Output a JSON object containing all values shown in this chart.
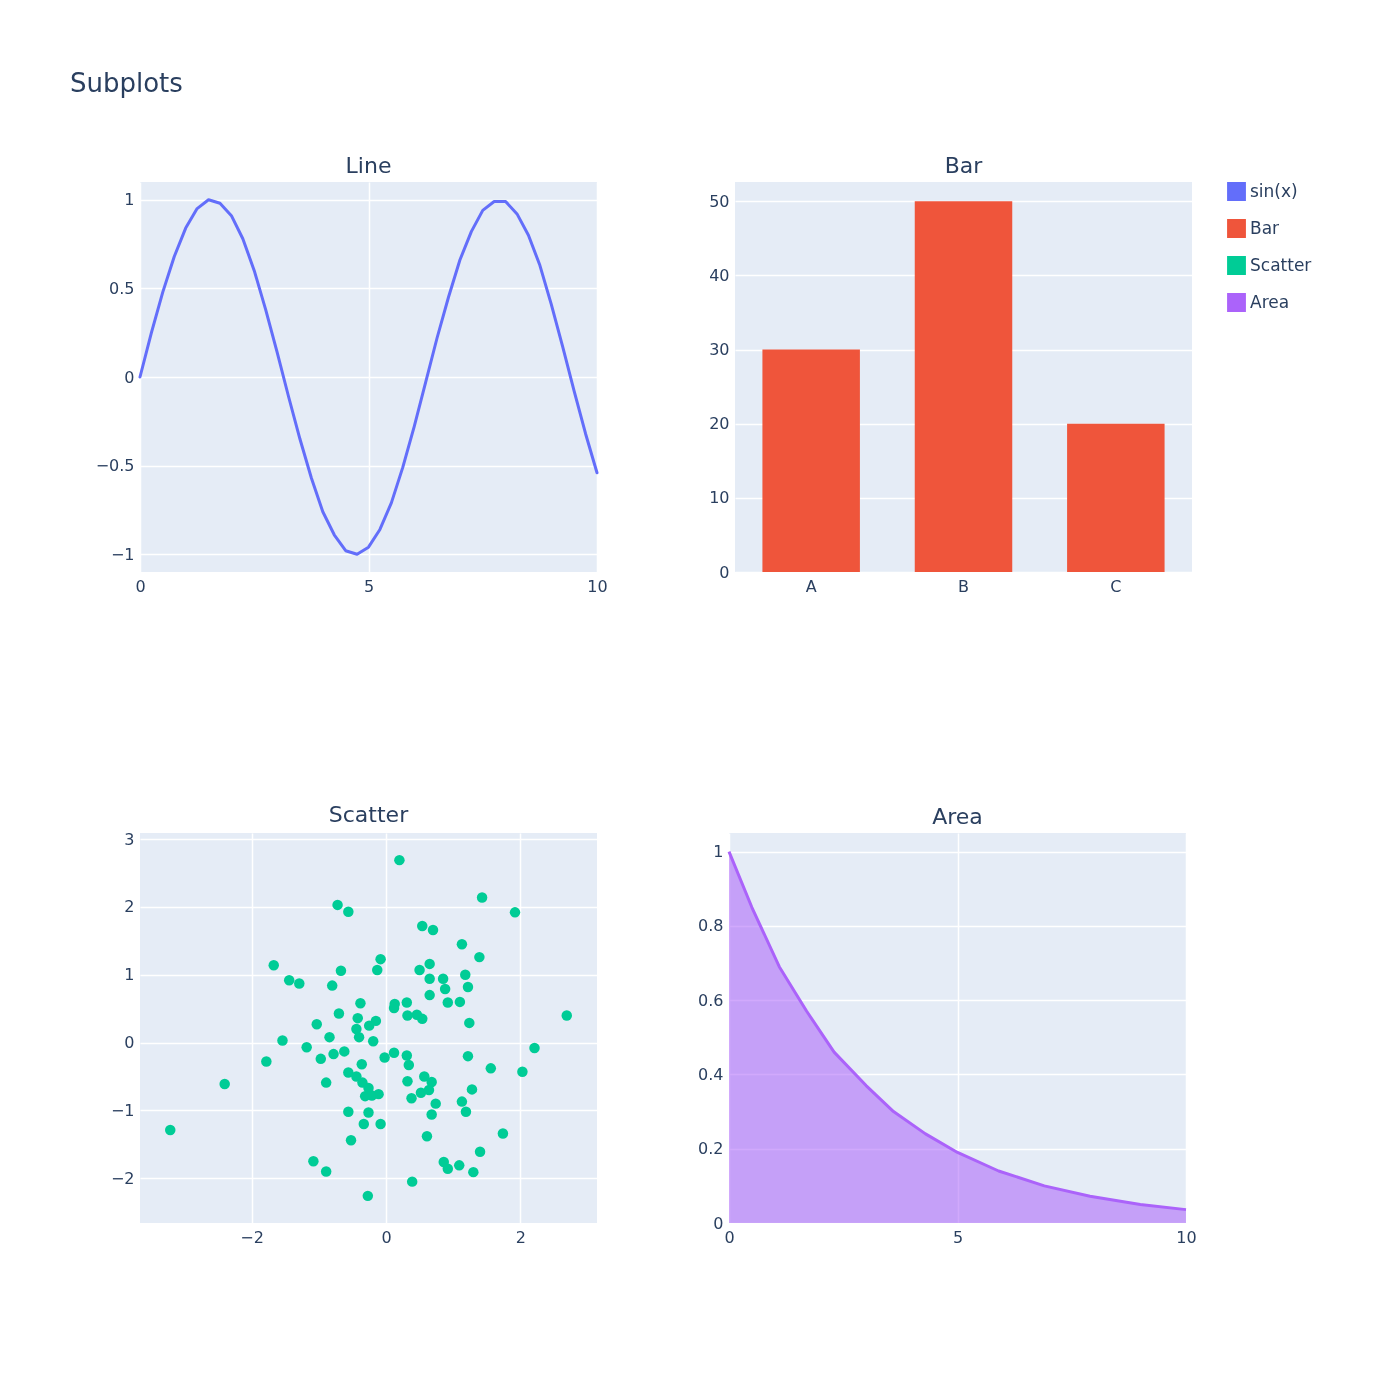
{
  "chart_data": [
    {
      "type": "line",
      "title": "Line",
      "annotations": [
        "Subplots"
      ],
      "xlim": [
        0,
        10
      ],
      "ylim": [
        -1.1,
        1.1
      ],
      "xticks": [
        0,
        5,
        10
      ],
      "yticks": [
        -1,
        -0.5,
        0,
        0.5,
        1
      ],
      "grid": true,
      "x": [
        0,
        0.25,
        0.5,
        0.75,
        1,
        1.25,
        1.5,
        1.75,
        2,
        2.25,
        2.5,
        2.75,
        3,
        3.25,
        3.5,
        3.75,
        4,
        4.25,
        4.5,
        4.75,
        5,
        5.25,
        5.5,
        5.75,
        6,
        6.25,
        6.5,
        6.75,
        7,
        7.25,
        7.5,
        7.75,
        8,
        8.25,
        8.5,
        8.75,
        9,
        9.25,
        9.5,
        9.75,
        10
      ],
      "series": [
        {
          "name": "sin(x)",
          "color": "#636efa",
          "values": [
            0,
            0.25,
            0.48,
            0.68,
            0.84,
            0.95,
            1,
            0.98,
            0.91,
            0.78,
            0.6,
            0.38,
            0.14,
            -0.11,
            -0.35,
            -0.57,
            -0.76,
            -0.89,
            -0.98,
            -1,
            -0.96,
            -0.86,
            -0.71,
            -0.51,
            -0.28,
            -0.03,
            0.22,
            0.45,
            0.66,
            0.82,
            0.94,
            0.99,
            0.99,
            0.92,
            0.8,
            0.63,
            0.41,
            0.17,
            -0.08,
            -0.32,
            -0.54
          ]
        }
      ]
    },
    {
      "type": "bar",
      "title": "Bar",
      "categories": [
        "A",
        "B",
        "C"
      ],
      "ylim": [
        0,
        52.6
      ],
      "yticks": [
        0,
        10,
        20,
        30,
        40,
        50
      ],
      "grid": "y",
      "legend": "right",
      "series": [
        {
          "name": "Bar",
          "color": "#ef553b",
          "values": [
            30,
            50,
            20
          ]
        }
      ]
    },
    {
      "type": "scatter",
      "title": "Scatter",
      "xlim": [
        -3.66,
        3.14
      ],
      "ylim": [
        -2.66,
        3.09
      ],
      "xticks": [
        -2,
        0,
        2
      ],
      "yticks": [
        -2,
        -1,
        0,
        1,
        2,
        3
      ],
      "grid": true,
      "marker": "circle",
      "series": [
        {
          "name": "Scatter",
          "color": "#00cc96",
          "x": [
            0.2,
            1.43,
            1.92,
            -0.72,
            -0.56,
            0.54,
            0.7,
            1.13,
            1.39,
            -1.67,
            -0.08,
            -0.13,
            -0.67,
            0.5,
            0.65,
            -1.44,
            -1.29,
            -0.8,
            0.65,
            0.85,
            1.18,
            0.88,
            1.22,
            0.65,
            0.92,
            1.1,
            -0.38,
            -0.7,
            0.13,
            0.12,
            0.31,
            0.32,
            0.46,
            0.54,
            1.24,
            2.69,
            -1.03,
            -0.42,
            -0.15,
            -0.25,
            -0.44,
            -0.84,
            -0.4,
            -1.54,
            -0.19,
            -1.18,
            -0.78,
            -0.62,
            -1.78,
            -0.97,
            -0.02,
            0.12,
            0.31,
            0.34,
            1.22,
            2.21,
            1.56,
            2.03,
            -2.4,
            -0.89,
            -0.56,
            -0.36,
            -0.44,
            -0.35,
            -0.26,
            -0.31,
            -0.11,
            -0.21,
            0.32,
            0.57,
            0.68,
            0.52,
            0.64,
            0.38,
            0.74,
            1.28,
            1.13,
            1.19,
            0.68,
            -0.56,
            -0.26,
            -0.33,
            -0.08,
            -3.21,
            -0.52,
            0.61,
            1.74,
            1.4,
            -1.08,
            -0.89,
            0.86,
            0.92,
            1.09,
            1.3,
            0.39,
            -0.27
          ],
          "values": [
            2.69,
            2.14,
            1.92,
            2.03,
            1.93,
            1.72,
            1.66,
            1.45,
            1.26,
            1.14,
            1.23,
            1.07,
            1.06,
            1.07,
            1.16,
            0.92,
            0.87,
            0.84,
            0.94,
            0.94,
            1.0,
            0.79,
            0.82,
            0.7,
            0.59,
            0.6,
            0.58,
            0.43,
            0.57,
            0.51,
            0.59,
            0.4,
            0.41,
            0.35,
            0.29,
            0.4,
            0.27,
            0.36,
            0.32,
            0.25,
            0.2,
            0.08,
            0.08,
            0.03,
            0.02,
            -0.07,
            -0.17,
            -0.13,
            -0.28,
            -0.24,
            -0.22,
            -0.15,
            -0.19,
            -0.33,
            -0.2,
            -0.08,
            -0.38,
            -0.43,
            -0.61,
            -0.59,
            -0.44,
            -0.32,
            -0.5,
            -0.59,
            -0.67,
            -0.79,
            -0.76,
            -0.78,
            -0.57,
            -0.5,
            -0.58,
            -0.74,
            -0.7,
            -0.82,
            -0.9,
            -0.69,
            -0.87,
            -1.02,
            -1.06,
            -1.02,
            -1.03,
            -1.2,
            -1.2,
            -1.29,
            -1.44,
            -1.38,
            -1.34,
            -1.61,
            -1.75,
            -1.9,
            -1.76,
            -1.86,
            -1.81,
            -1.91,
            -2.05,
            -2.26
          ]
        }
      ]
    },
    {
      "type": "area",
      "title": "Area",
      "xlim": [
        0,
        10
      ],
      "ylim": [
        0,
        1.05
      ],
      "xticks": [
        0,
        5,
        10
      ],
      "yticks": [
        0,
        0.2,
        0.4,
        0.6,
        0.8,
        1
      ],
      "grid": true,
      "x": [
        0,
        0.5,
        1.1,
        1.7,
        2.3,
        3,
        3.6,
        4.3,
        5,
        5.9,
        6.9,
        7.9,
        9,
        10
      ],
      "series": [
        {
          "name": "Area",
          "color": "#ab63fa",
          "values": [
            1,
            0.85,
            0.69,
            0.57,
            0.46,
            0.37,
            0.3,
            0.24,
            0.19,
            0.14,
            0.1,
            0.072,
            0.05,
            0.036
          ]
        }
      ]
    }
  ]
}
